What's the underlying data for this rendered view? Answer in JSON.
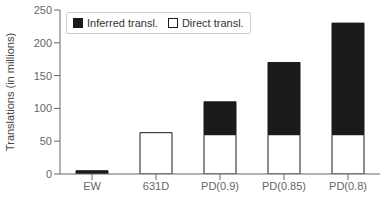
{
  "chart_data": {
    "type": "bar",
    "stacked": true,
    "ylabel": "Translations (in millions)",
    "categories": [
      "EW",
      "631D",
      "PD(0.9)",
      "PD(0.85)",
      "PD(0.8)"
    ],
    "series": [
      {
        "name": "Direct transl.",
        "color": "#ffffff",
        "values": [
          0,
          63,
          60,
          60,
          60
        ]
      },
      {
        "name": "Inferred transl.",
        "color": "#1a1a1a",
        "values": [
          5,
          0,
          50,
          110,
          170
        ]
      }
    ],
    "ylim": [
      0,
      250
    ],
    "yticks": [
      0,
      50,
      100,
      150,
      200,
      250
    ],
    "legend": "upper left",
    "grid": false
  }
}
